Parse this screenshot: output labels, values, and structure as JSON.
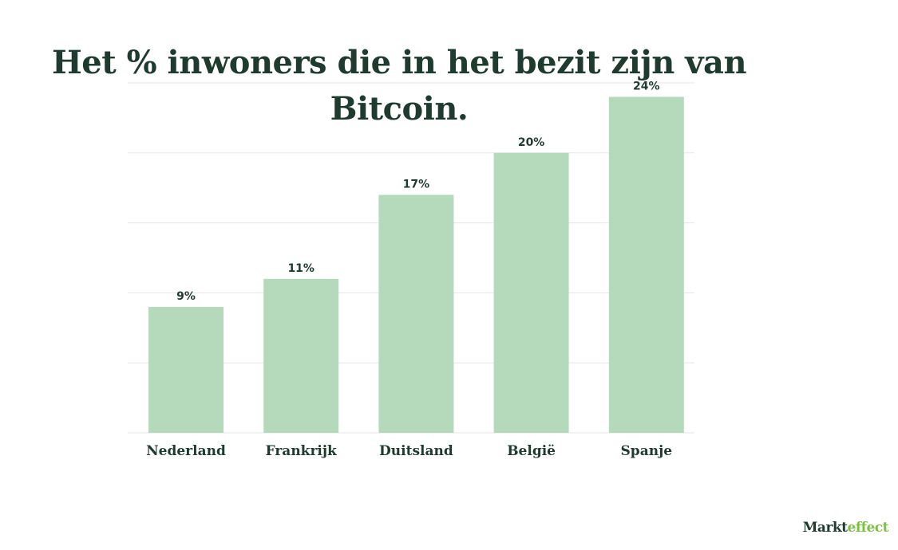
{
  "chart_data": {
    "type": "bar",
    "title": "Het % inwoners die in het bezit zijn van Bitcoin.",
    "categories": [
      "Nederland",
      "Frankrijk",
      "Duitsland",
      "België",
      "Spanje"
    ],
    "values": [
      9,
      11,
      17,
      20,
      24
    ],
    "value_labels": [
      "9%",
      "11%",
      "17%",
      "20%",
      "24%"
    ],
    "ylim": [
      0,
      25
    ],
    "grid": true,
    "colors": {
      "bar": "#b5dabb",
      "text": "#1f3b30",
      "grid": "#e6e6e6"
    }
  },
  "logo": {
    "part1": "Markt",
    "part2": "effect"
  }
}
